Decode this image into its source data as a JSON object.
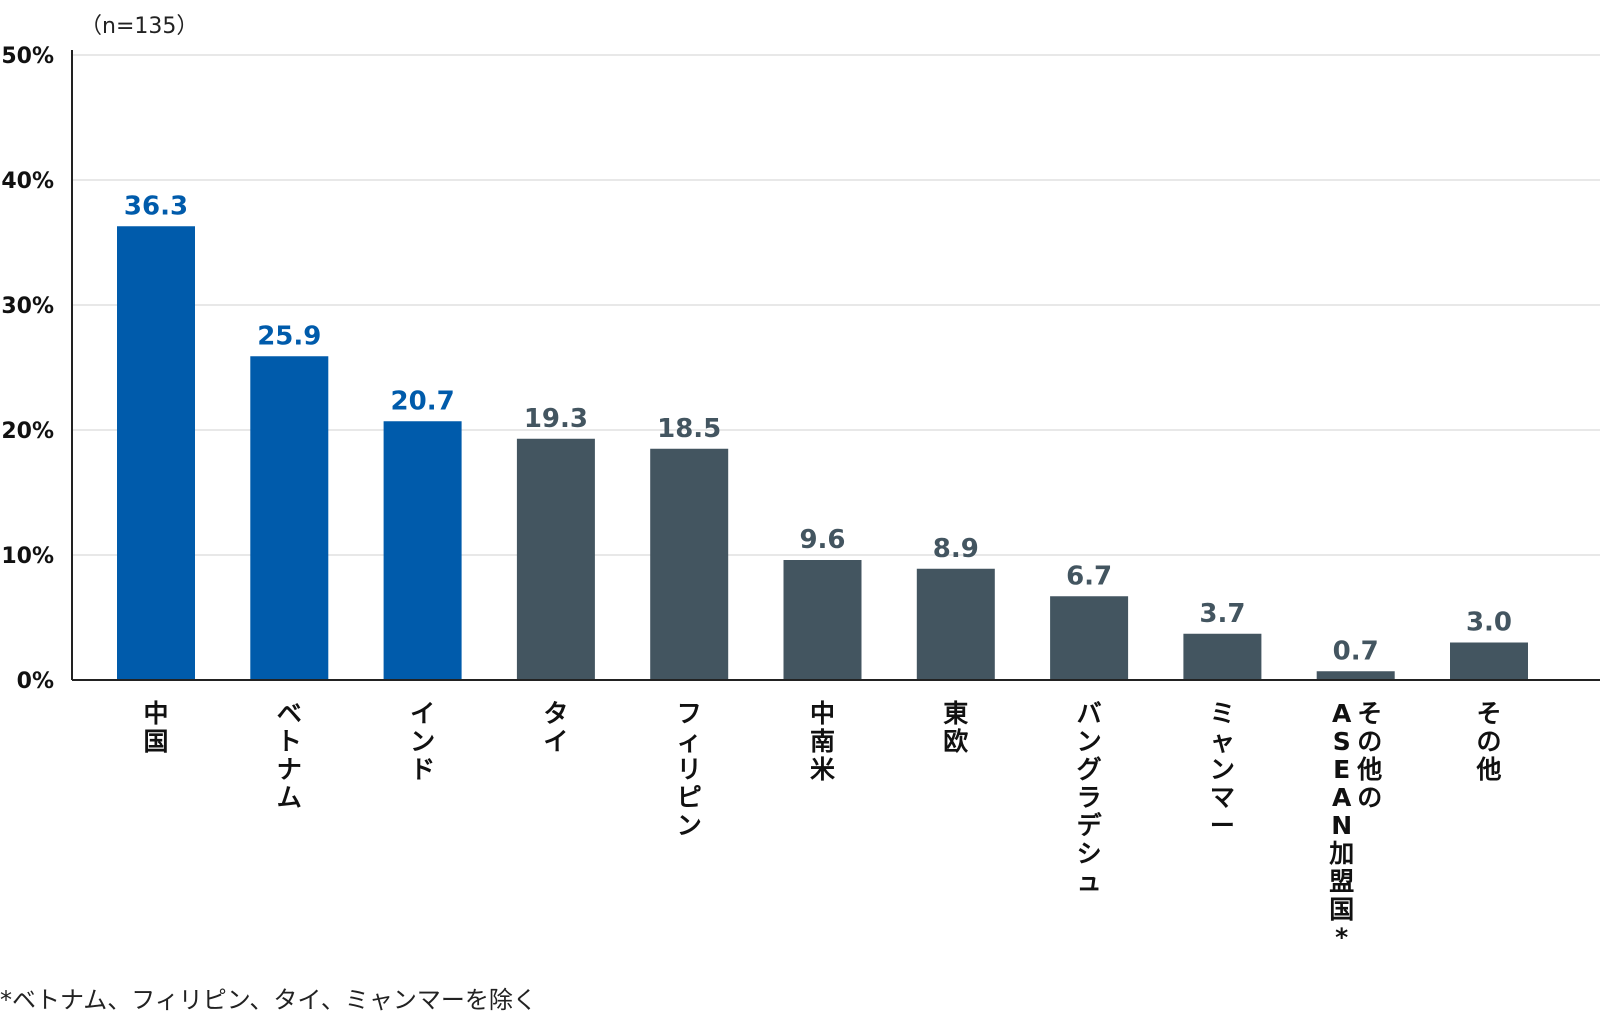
{
  "chart_data": {
    "type": "bar",
    "note": "（n=135）",
    "categories": [
      "中国",
      "ベトナム",
      "インド",
      "タイ",
      "フィリピン",
      "中南米",
      "東欧",
      "バングラデシュ",
      "ミャンマー",
      "その他の\nASEAN加盟国*",
      "その他"
    ],
    "values": [
      36.3,
      25.9,
      20.7,
      19.3,
      18.5,
      9.6,
      8.9,
      6.7,
      3.7,
      0.7,
      3.0
    ],
    "value_labels": [
      "36.3",
      "25.9",
      "20.7",
      "19.3",
      "18.5",
      "9.6",
      "8.9",
      "6.7",
      "3.7",
      "0.7",
      "3.0"
    ],
    "highlight_count": 3,
    "y_ticks": [
      "0%",
      "10%",
      "20%",
      "30%",
      "40%",
      "50%"
    ],
    "ylim": [
      0,
      50
    ],
    "grid": true,
    "colors": {
      "highlight": "#005bab",
      "default": "#435560",
      "grid": "#d9d9d9",
      "axis": "#222222"
    },
    "footnote": "*ベトナム、フィリピン、タイ、ミャンマーを除く"
  }
}
